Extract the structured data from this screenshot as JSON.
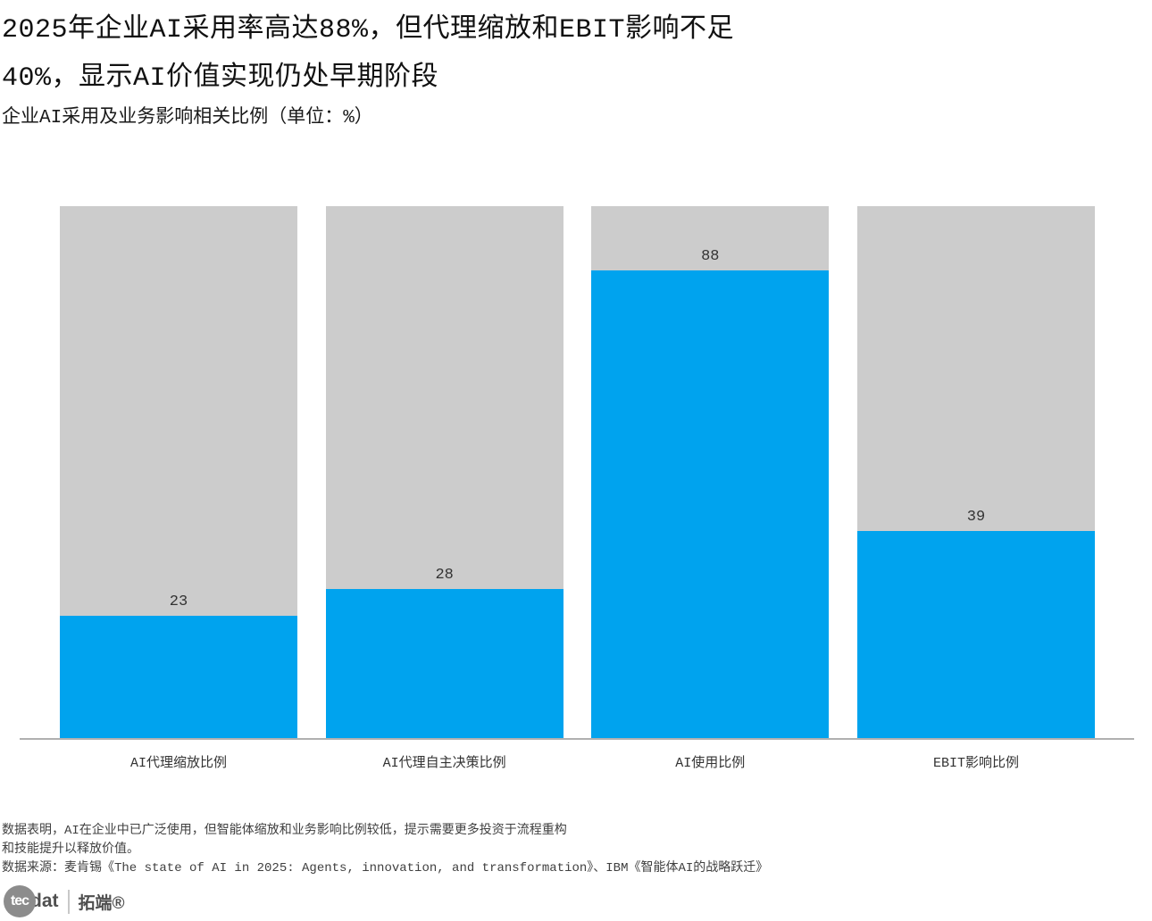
{
  "header": {
    "title_line1": "2025年企业AI采用率高达88%，但代理缩放和EBIT影响不足",
    "title_line2": "40%，显示AI价值实现仍处早期阶段",
    "subtitle": "企业AI采用及业务影响相关比例（单位：%）"
  },
  "chart_data": {
    "type": "bar",
    "title": "企业AI采用及业务影响相关比例（单位：%）",
    "categories": [
      "AI代理缩放比例",
      "AI代理自主决策比例",
      "AI使用比例",
      "EBIT影响比例"
    ],
    "values": [
      23,
      28,
      88,
      39
    ],
    "track_value": 100,
    "unit": "%",
    "xlabel": "",
    "ylabel": "",
    "ylim": [
      0,
      100
    ],
    "grid": false,
    "legend": "none",
    "colors": {
      "fill": "#00a3ee",
      "track": "#cccccc",
      "axis": "#b0b0b0",
      "value_label": "#333333"
    }
  },
  "footer": {
    "note_line1": "数据表明，AI在企业中已广泛使用，但智能体缩放和业务影响比例较低，提示需要更多投资于流程重构",
    "note_line2": "和技能提升以释放价值。",
    "source": "数据来源：麦肯锡《The state of AI in 2025: Agents, innovation, and transformation》、IBM《智能体AI的战略跃迁》"
  },
  "logo": {
    "circle_text": "tec",
    "suffix_text": "dat",
    "brand_cn": "拓端®"
  }
}
